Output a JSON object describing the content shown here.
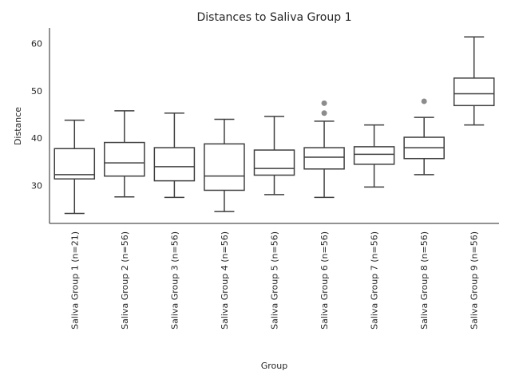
{
  "chart_data": {
    "type": "box",
    "title": "Distances to Saliva Group 1",
    "xlabel": "Group",
    "ylabel": "Distance",
    "ylim": [
      22,
      63.3
    ],
    "yticks": [
      30,
      40,
      50,
      60
    ],
    "grid": false,
    "categories": [
      "Saliva Group 1 (n=21)",
      "Saliva Group 2 (n=56)",
      "Saliva Group 3 (n=56)",
      "Saliva Group 4 (n=56)",
      "Saliva Group 5 (n=56)",
      "Saliva Group 6 (n=56)",
      "Saliva Group 7 (n=56)",
      "Saliva Group 8 (n=56)",
      "Saliva Group 9 (n=56)"
    ],
    "boxes": [
      {
        "whisker_low": 24.1,
        "q1": 31.4,
        "median": 32.3,
        "q3": 37.8,
        "whisker_high": 43.8,
        "outliers": []
      },
      {
        "whisker_low": 27.6,
        "q1": 32.0,
        "median": 34.8,
        "q3": 39.1,
        "whisker_high": 45.8,
        "outliers": []
      },
      {
        "whisker_low": 27.5,
        "q1": 31.0,
        "median": 34.0,
        "q3": 38.0,
        "whisker_high": 45.3,
        "outliers": []
      },
      {
        "whisker_low": 24.5,
        "q1": 29.0,
        "median": 32.0,
        "q3": 38.8,
        "whisker_high": 44.0,
        "outliers": []
      },
      {
        "whisker_low": 28.1,
        "q1": 32.2,
        "median": 33.6,
        "q3": 37.5,
        "whisker_high": 44.6,
        "outliers": []
      },
      {
        "whisker_low": 27.5,
        "q1": 33.5,
        "median": 36.0,
        "q3": 38.0,
        "whisker_high": 43.6,
        "outliers": [
          45.3,
          47.4
        ]
      },
      {
        "whisker_low": 29.7,
        "q1": 34.5,
        "median": 36.6,
        "q3": 38.2,
        "whisker_high": 42.8,
        "outliers": []
      },
      {
        "whisker_low": 32.3,
        "q1": 35.7,
        "median": 38.0,
        "q3": 40.2,
        "whisker_high": 44.4,
        "outliers": [
          47.8
        ]
      },
      {
        "whisker_low": 42.8,
        "q1": 46.9,
        "median": 49.4,
        "q3": 52.7,
        "whisker_high": 61.4,
        "outliers": []
      }
    ]
  }
}
